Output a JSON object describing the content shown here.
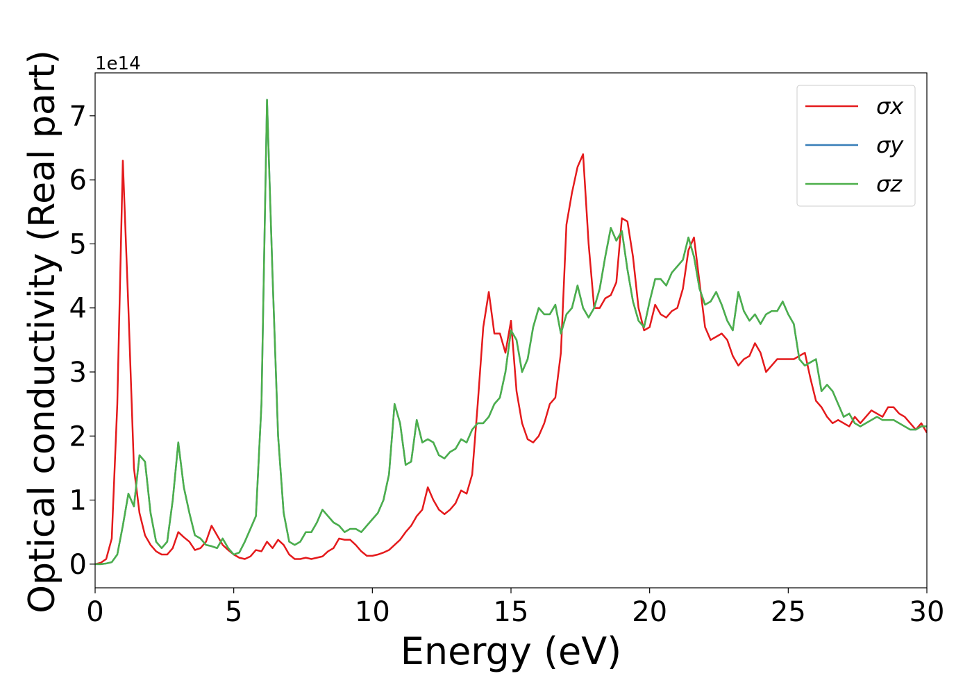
{
  "chart_data": {
    "type": "line",
    "xlabel": "Energy (eV)",
    "ylabel": "Optical conductivity (Real part)",
    "y_offset_label": "1e14",
    "x": [
      0,
      0.2,
      0.4,
      0.6,
      0.8,
      1,
      1.2,
      1.4,
      1.6,
      1.8,
      2,
      2.2,
      2.4,
      2.6,
      2.8,
      3,
      3.2,
      3.4,
      3.6,
      3.8,
      4,
      4.2,
      4.4,
      4.6,
      4.8,
      5,
      5.2,
      5.4,
      5.6,
      5.8,
      6,
      6.2,
      6.4,
      6.6,
      6.8,
      7,
      7.2,
      7.4,
      7.6,
      7.8,
      8,
      8.2,
      8.4,
      8.6,
      8.8,
      9,
      9.2,
      9.4,
      9.6,
      9.8,
      10,
      10.2,
      10.4,
      10.6,
      10.8,
      11,
      11.2,
      11.4,
      11.6,
      11.8,
      12,
      12.2,
      12.4,
      12.6,
      12.8,
      13,
      13.2,
      13.4,
      13.6,
      13.8,
      14,
      14.2,
      14.4,
      14.6,
      14.8,
      15,
      15.2,
      15.4,
      15.6,
      15.8,
      16,
      16.2,
      16.4,
      16.6,
      16.8,
      17,
      17.2,
      17.4,
      17.6,
      17.8,
      18,
      18.2,
      18.4,
      18.6,
      18.8,
      19,
      19.2,
      19.4,
      19.6,
      19.8,
      20,
      20.2,
      20.4,
      20.6,
      20.8,
      21,
      21.2,
      21.4,
      21.6,
      21.8,
      22,
      22.2,
      22.4,
      22.6,
      22.8,
      23,
      23.2,
      23.4,
      23.6,
      23.8,
      24,
      24.2,
      24.4,
      24.6,
      24.8,
      25,
      25.2,
      25.4,
      25.6,
      25.8,
      26,
      26.2,
      26.4,
      26.6,
      26.8,
      27,
      27.2,
      27.4,
      27.6,
      27.8,
      28,
      28.2,
      28.4,
      28.6,
      28.8,
      29,
      29.2,
      29.4,
      29.6,
      29.8,
      30
    ],
    "series": [
      {
        "name": "σx",
        "color": "#e41a1c",
        "values": [
          0,
          0.02,
          0.08,
          0.4,
          2.5,
          6.3,
          4.0,
          1.5,
          0.8,
          0.45,
          0.3,
          0.2,
          0.15,
          0.15,
          0.25,
          0.5,
          0.42,
          0.35,
          0.22,
          0.25,
          0.35,
          0.6,
          0.45,
          0.3,
          0.22,
          0.15,
          0.1,
          0.08,
          0.12,
          0.22,
          0.2,
          0.35,
          0.25,
          0.38,
          0.3,
          0.15,
          0.08,
          0.08,
          0.1,
          0.08,
          0.1,
          0.12,
          0.2,
          0.25,
          0.4,
          0.38,
          0.38,
          0.3,
          0.2,
          0.13,
          0.13,
          0.15,
          0.18,
          0.22,
          0.3,
          0.38,
          0.5,
          0.6,
          0.75,
          0.85,
          1.2,
          1.0,
          0.85,
          0.78,
          0.85,
          0.95,
          1.15,
          1.1,
          1.4,
          2.5,
          3.7,
          4.25,
          3.6,
          3.6,
          3.3,
          3.8,
          2.7,
          2.2,
          1.95,
          1.9,
          2.0,
          2.2,
          2.5,
          2.6,
          3.3,
          5.3,
          5.8,
          6.2,
          6.4,
          5.0,
          4.0,
          4.0,
          4.15,
          4.2,
          4.4,
          5.4,
          5.35,
          4.8,
          4.0,
          3.65,
          3.7,
          4.05,
          3.9,
          3.85,
          3.95,
          4.0,
          4.3,
          4.9,
          5.1,
          4.4,
          3.7,
          3.5,
          3.55,
          3.6,
          3.5,
          3.25,
          3.1,
          3.2,
          3.25,
          3.45,
          3.3,
          3.0,
          3.1,
          3.2,
          3.2,
          3.2,
          3.2,
          3.25,
          3.3,
          2.9,
          2.55,
          2.45,
          2.3,
          2.2,
          2.25,
          2.2,
          2.15,
          2.3,
          2.2,
          2.3,
          2.4,
          2.35,
          2.3,
          2.45,
          2.45,
          2.35,
          2.3,
          2.2,
          2.1,
          2.2,
          2.05
        ]
      },
      {
        "name": "σy",
        "color": "#377eb8",
        "values": [
          0,
          0,
          0.01,
          0.03,
          0.15,
          0.6,
          1.1,
          0.9,
          1.7,
          1.6,
          0.8,
          0.35,
          0.25,
          0.35,
          1.0,
          1.9,
          1.2,
          0.8,
          0.45,
          0.4,
          0.3,
          0.28,
          0.25,
          0.4,
          0.25,
          0.15,
          0.18,
          0.35,
          0.55,
          0.75,
          2.5,
          7.25,
          4.5,
          2.0,
          0.8,
          0.35,
          0.3,
          0.35,
          0.5,
          0.5,
          0.65,
          0.85,
          0.75,
          0.65,
          0.6,
          0.5,
          0.55,
          0.55,
          0.5,
          0.6,
          0.7,
          0.8,
          1.0,
          1.4,
          2.5,
          2.2,
          1.55,
          1.6,
          2.25,
          1.9,
          1.95,
          1.9,
          1.7,
          1.65,
          1.75,
          1.8,
          1.95,
          1.9,
          2.1,
          2.2,
          2.2,
          2.3,
          2.5,
          2.6,
          3.0,
          3.65,
          3.5,
          3.0,
          3.2,
          3.7,
          4.0,
          3.9,
          3.9,
          4.05,
          3.6,
          3.9,
          4.0,
          4.35,
          4.0,
          3.85,
          4.0,
          4.3,
          4.8,
          5.25,
          5.05,
          5.2,
          4.6,
          4.1,
          3.8,
          3.7,
          4.1,
          4.45,
          4.45,
          4.35,
          4.55,
          4.65,
          4.75,
          5.1,
          4.8,
          4.3,
          4.05,
          4.1,
          4.25,
          4.05,
          3.8,
          3.65,
          4.25,
          3.95,
          3.8,
          3.9,
          3.75,
          3.9,
          3.95,
          3.95,
          4.1,
          3.9,
          3.75,
          3.2,
          3.1,
          3.15,
          3.2,
          2.7,
          2.8,
          2.7,
          2.5,
          2.3,
          2.35,
          2.2,
          2.15,
          2.2,
          2.25,
          2.3,
          2.25,
          2.25,
          2.25,
          2.2,
          2.15,
          2.1,
          2.1,
          2.15,
          2.15
        ]
      },
      {
        "name": "σz",
        "color": "#4daf4a",
        "values": [
          0,
          0,
          0.01,
          0.03,
          0.15,
          0.6,
          1.1,
          0.9,
          1.7,
          1.6,
          0.8,
          0.35,
          0.25,
          0.35,
          1.0,
          1.9,
          1.2,
          0.8,
          0.45,
          0.4,
          0.3,
          0.28,
          0.25,
          0.4,
          0.25,
          0.15,
          0.18,
          0.35,
          0.55,
          0.75,
          2.5,
          7.25,
          4.5,
          2.0,
          0.8,
          0.35,
          0.3,
          0.35,
          0.5,
          0.5,
          0.65,
          0.85,
          0.75,
          0.65,
          0.6,
          0.5,
          0.55,
          0.55,
          0.5,
          0.6,
          0.7,
          0.8,
          1.0,
          1.4,
          2.5,
          2.2,
          1.55,
          1.6,
          2.25,
          1.9,
          1.95,
          1.9,
          1.7,
          1.65,
          1.75,
          1.8,
          1.95,
          1.9,
          2.1,
          2.2,
          2.2,
          2.3,
          2.5,
          2.6,
          3.0,
          3.65,
          3.5,
          3.0,
          3.2,
          3.7,
          4.0,
          3.9,
          3.9,
          4.05,
          3.6,
          3.9,
          4.0,
          4.35,
          4.0,
          3.85,
          4.0,
          4.3,
          4.8,
          5.25,
          5.05,
          5.2,
          4.6,
          4.1,
          3.8,
          3.7,
          4.1,
          4.45,
          4.45,
          4.35,
          4.55,
          4.65,
          4.75,
          5.1,
          4.8,
          4.3,
          4.05,
          4.1,
          4.25,
          4.05,
          3.8,
          3.65,
          4.25,
          3.95,
          3.8,
          3.9,
          3.75,
          3.9,
          3.95,
          3.95,
          4.1,
          3.9,
          3.75,
          3.2,
          3.1,
          3.15,
          3.2,
          2.7,
          2.8,
          2.7,
          2.5,
          2.3,
          2.35,
          2.2,
          2.15,
          2.2,
          2.25,
          2.3,
          2.25,
          2.25,
          2.25,
          2.2,
          2.15,
          2.1,
          2.1,
          2.15,
          2.15
        ]
      }
    ],
    "xlim": [
      0,
      30
    ],
    "xticks": [
      0,
      5,
      10,
      15,
      20,
      25,
      30
    ],
    "ylim": [
      -0.37,
      7.67
    ],
    "yticks": [
      0,
      1,
      2,
      3,
      4,
      5,
      6,
      7
    ],
    "grid": false,
    "legend": "upper right"
  }
}
